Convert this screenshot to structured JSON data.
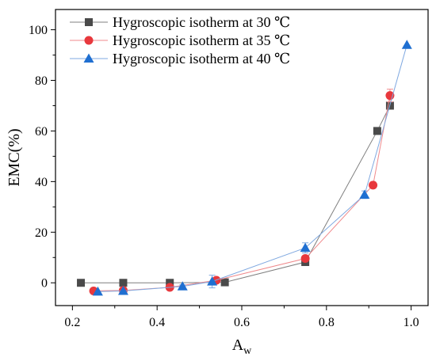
{
  "chart_data": {
    "type": "scatter",
    "title": "",
    "xlabel": "A",
    "xlabel_sub": "w",
    "ylabel": "EMC(%)",
    "xlim": [
      0.16,
      1.04
    ],
    "ylim": [
      -9,
      108
    ],
    "xticks": [
      0.2,
      0.4,
      0.6,
      0.8,
      1.0
    ],
    "xtick_labels": [
      "0.2",
      "0.4",
      "0.6",
      "0.8",
      "1.0"
    ],
    "yticks": [
      0,
      20,
      40,
      60,
      80,
      100
    ],
    "ytick_labels": [
      "0",
      "20",
      "40",
      "60",
      "80",
      "100"
    ],
    "grid": false,
    "legend_position": "top-left",
    "series": [
      {
        "name": "Hygroscopic isotherm at 30 ℃",
        "marker": "square",
        "marker_color": "#4a4a4a",
        "line_color": "#7f7f7f",
        "points": [
          {
            "x": 0.22,
            "y": 0.0,
            "err": 0
          },
          {
            "x": 0.32,
            "y": 0.0,
            "err": 0
          },
          {
            "x": 0.43,
            "y": 0.0,
            "err": 0
          },
          {
            "x": 0.56,
            "y": 0.2,
            "err": 0
          },
          {
            "x": 0.75,
            "y": 8.2,
            "err": 0.8
          },
          {
            "x": 0.92,
            "y": 60.0,
            "err": 0.8
          },
          {
            "x": 0.95,
            "y": 70.0,
            "err": 1.0
          }
        ]
      },
      {
        "name": "Hygroscopic isotherm at 35 ℃",
        "marker": "circle",
        "marker_color": "#e8383d",
        "line_color": "#f08a8c",
        "points": [
          {
            "x": 0.25,
            "y": -3.2,
            "err": 0
          },
          {
            "x": 0.32,
            "y": -3.0,
            "err": 0
          },
          {
            "x": 0.43,
            "y": -1.8,
            "err": 0
          },
          {
            "x": 0.54,
            "y": 1.0,
            "err": 0
          },
          {
            "x": 0.75,
            "y": 9.6,
            "err": 1.0
          },
          {
            "x": 0.91,
            "y": 38.6,
            "err": 1.2
          },
          {
            "x": 0.95,
            "y": 74.0,
            "err": 2.5
          }
        ]
      },
      {
        "name": "Hygroscopic isotherm at 40 ℃",
        "marker": "triangle",
        "marker_color": "#1f6fd1",
        "line_color": "#7fa8e0",
        "points": [
          {
            "x": 0.26,
            "y": -3.5,
            "err": 0
          },
          {
            "x": 0.32,
            "y": -3.2,
            "err": 0
          },
          {
            "x": 0.46,
            "y": -1.4,
            "err": 0.6
          },
          {
            "x": 0.53,
            "y": 0.5,
            "err": 2.5
          },
          {
            "x": 0.75,
            "y": 13.8,
            "err": 2.0
          },
          {
            "x": 0.89,
            "y": 34.8,
            "err": 1.5
          },
          {
            "x": 0.99,
            "y": 94.0,
            "err": 0
          }
        ]
      }
    ]
  }
}
